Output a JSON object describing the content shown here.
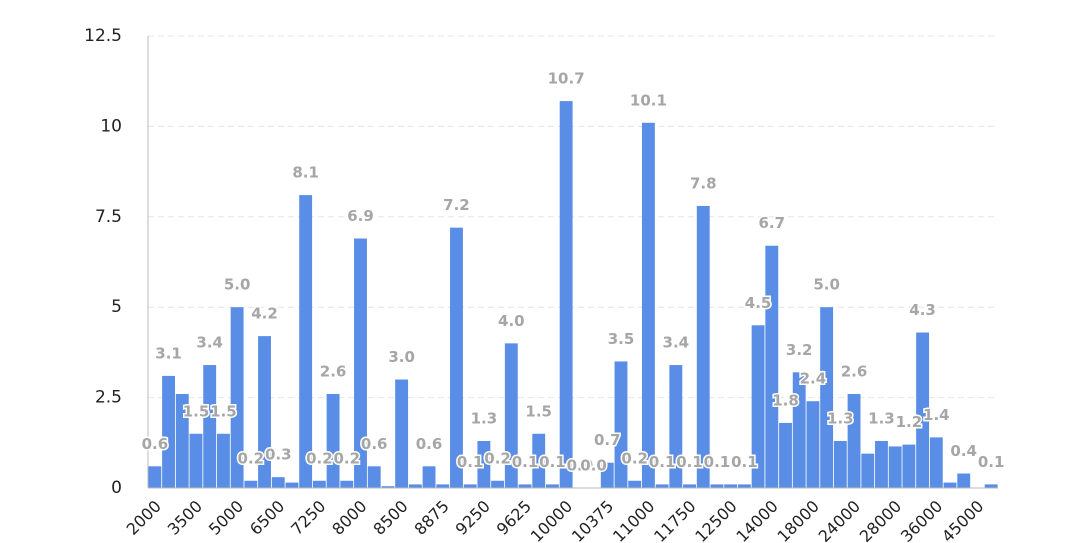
{
  "chart_data": {
    "type": "bar",
    "categories": [
      "2000",
      null,
      null,
      "3500",
      null,
      null,
      "5000",
      null,
      null,
      "6500",
      null,
      null,
      "7250",
      null,
      null,
      "8000",
      null,
      null,
      "8500",
      null,
      null,
      "8875",
      null,
      null,
      "9250",
      null,
      null,
      "9625",
      null,
      null,
      "10000",
      null,
      null,
      "10375",
      null,
      null,
      "11000",
      null,
      null,
      "11750",
      null,
      null,
      "12500",
      null,
      null,
      "14000",
      null,
      null,
      "18000",
      null,
      null,
      "24000",
      null,
      null,
      "28000",
      null,
      null,
      "36000",
      null,
      null,
      "45000",
      null
    ],
    "values": [
      0.6,
      3.1,
      2.6,
      1.5,
      3.4,
      1.5,
      5.0,
      0.2,
      4.2,
      0.3,
      0.15,
      8.1,
      0.2,
      2.6,
      0.2,
      6.9,
      0.6,
      0.05,
      3.0,
      0.1,
      0.6,
      0.1,
      7.2,
      0.1,
      1.3,
      0.2,
      4.0,
      0.1,
      1.5,
      0.1,
      10.7,
      0,
      0,
      0.7,
      3.5,
      0.2,
      10.1,
      0.1,
      3.4,
      0.1,
      7.8,
      0.1,
      0.1,
      0.1,
      4.5,
      6.7,
      1.8,
      3.2,
      2.4,
      5.0,
      1.3,
      2.6,
      0.95,
      1.3,
      1.15,
      1.2,
      4.3,
      1.4,
      0.15,
      0.4,
      0,
      0.1
    ],
    "value_labels": [
      "0.6",
      "3.1",
      null,
      "1.5",
      "3.4",
      "1.5",
      "5.0",
      "0.2",
      "4.2",
      "0.3",
      null,
      "8.1",
      "0.2",
      "2.6",
      "0.2",
      "6.9",
      "0.6",
      null,
      "3.0",
      null,
      "0.6",
      null,
      "7.2",
      "0.1",
      "1.3",
      "0.2",
      "4.0",
      "0.1",
      "1.5",
      "0.1",
      "10.7",
      "0.0",
      "0.0",
      "0.7",
      "3.5",
      "0.2",
      "10.1",
      "0.1",
      "3.4",
      "0.1",
      "7.8",
      "0.1",
      null,
      "0.1",
      "4.5",
      "6.7",
      "1.8",
      "3.2",
      "2.4",
      "5.0",
      "1.3",
      "2.6",
      null,
      "1.3",
      null,
      "1.2",
      "4.3",
      "1.4",
      null,
      "0.4",
      null,
      "0.1"
    ],
    "color": "#5a8ee6",
    "ylim": [
      0,
      12.5
    ],
    "yticks": [
      0,
      2.5,
      5,
      7.5,
      10,
      12.5
    ],
    "grid": true
  }
}
